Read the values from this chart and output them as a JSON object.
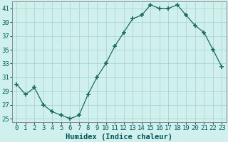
{
  "x": [
    0,
    1,
    2,
    3,
    4,
    5,
    6,
    7,
    8,
    9,
    10,
    11,
    12,
    13,
    14,
    15,
    16,
    17,
    18,
    19,
    20,
    21,
    22,
    23
  ],
  "y": [
    30,
    28.5,
    29.5,
    27,
    26,
    25.5,
    25,
    25.5,
    28.5,
    31,
    33,
    35.5,
    37.5,
    39.5,
    40,
    41.5,
    41,
    41,
    41.5,
    40,
    38.5,
    37.5,
    35,
    32.5
  ],
  "line_color": "#1a6b5a",
  "marker": "+",
  "marker_size": 4,
  "marker_lw": 1.2,
  "bg_color": "#cff0ec",
  "grid_color": "#aad8d0",
  "xlabel": "Humidex (Indice chaleur)",
  "xlim": [
    -0.5,
    23.5
  ],
  "ylim": [
    24.5,
    42
  ],
  "yticks": [
    25,
    27,
    29,
    31,
    33,
    35,
    37,
    39,
    41
  ],
  "xticks": [
    0,
    1,
    2,
    3,
    4,
    5,
    6,
    7,
    8,
    9,
    10,
    11,
    12,
    13,
    14,
    15,
    16,
    17,
    18,
    19,
    20,
    21,
    22,
    23
  ],
  "xlabel_fontsize": 7.5,
  "tick_fontsize": 6.5,
  "tick_color": "#006060",
  "label_color": "#005555"
}
